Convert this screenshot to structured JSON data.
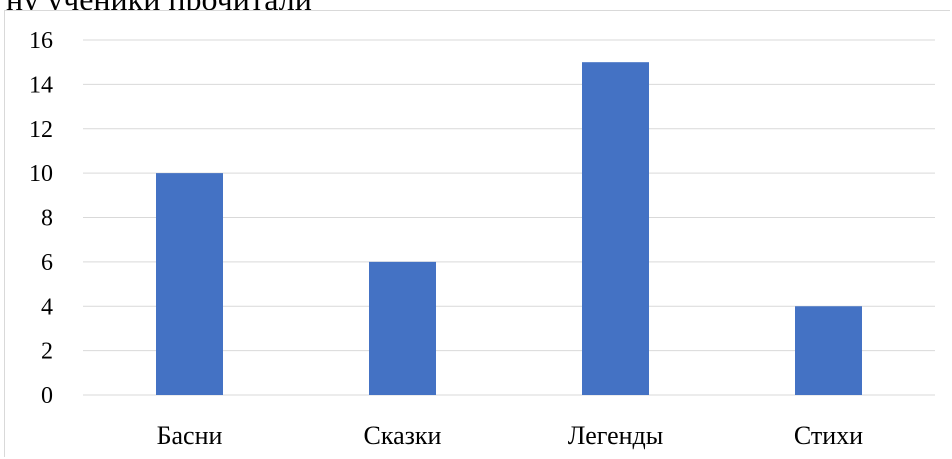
{
  "page": {
    "clipped_heading": "ну ученики прочитали"
  },
  "chart_data": {
    "type": "bar",
    "title": "",
    "xlabel": "",
    "ylabel": "",
    "categories": [
      "Басни",
      "Сказки",
      "Легенды",
      "Стихи"
    ],
    "values": [
      10,
      6,
      15,
      4
    ],
    "ylim": [
      0,
      16
    ],
    "yticks": [
      "0",
      "2",
      "4",
      "6",
      "8",
      "10",
      "12",
      "14",
      "16"
    ],
    "grid": true,
    "legend": "none",
    "bar_color": "#4472C4",
    "grid_color": "#d9d9d9"
  }
}
